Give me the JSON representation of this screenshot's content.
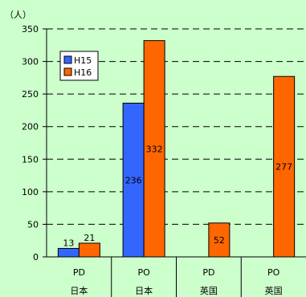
{
  "chart_data": {
    "type": "bar",
    "unit_label": "（人）",
    "categories": [
      {
        "line1": "PD",
        "line2": "日本"
      },
      {
        "line1": "PO",
        "line2": "日本"
      },
      {
        "line1": "PD",
        "line2": "英国"
      },
      {
        "line1": "PO",
        "line2": "英国"
      }
    ],
    "series": [
      {
        "name": "H15",
        "color": "#3366ff",
        "values": [
          13,
          236,
          null,
          null
        ],
        "labels": [
          "13",
          "236",
          "",
          ""
        ]
      },
      {
        "name": "H16",
        "color": "#ff6600",
        "values": [
          21,
          332,
          52,
          277
        ],
        "labels": [
          "21",
          "332",
          "52",
          "277"
        ]
      }
    ],
    "ylim": [
      0,
      350
    ],
    "yticks": [
      "0",
      "50",
      "100",
      "150",
      "200",
      "250",
      "300",
      "350"
    ],
    "grid": true,
    "legend": "top-left"
  }
}
